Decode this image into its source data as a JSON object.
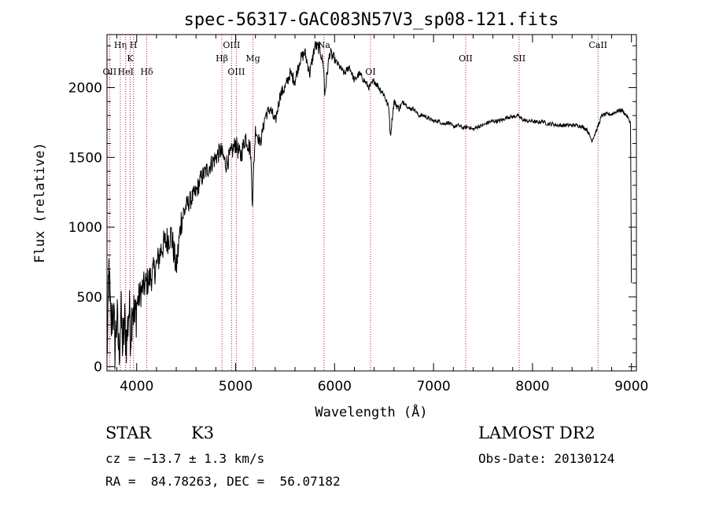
{
  "chart_data": {
    "type": "line",
    "title": "spec-56317-GAC083N57V3_sp08-121.fits",
    "xlabel": "Wavelength (Å)",
    "ylabel": "Flux (relative)",
    "xlim": [
      3700,
      9050
    ],
    "ylim": [
      -30,
      2380
    ],
    "x_ticks": [
      4000,
      5000,
      6000,
      7000,
      8000,
      9000
    ],
    "y_ticks": [
      0,
      500,
      1000,
      1500,
      2000
    ],
    "grid": false,
    "line_color": "#000000",
    "marker_color": "#b22222",
    "series": [
      {
        "x": [
          3700,
          3720,
          3740,
          3760,
          3780,
          3800,
          3820,
          3840,
          3860,
          3880,
          3900,
          3920,
          3940,
          3960,
          3980,
          4000,
          4050,
          4100,
          4150,
          4200,
          4250,
          4300,
          4350,
          4400,
          4450,
          4500,
          4550,
          4600,
          4650,
          4700,
          4750,
          4800,
          4850,
          4900,
          4950,
          5000,
          5050,
          5100,
          5150,
          5170,
          5200,
          5250,
          5300,
          5350,
          5400,
          5450,
          5500,
          5550,
          5600,
          5650,
          5700,
          5750,
          5800,
          5850,
          5890,
          5900,
          5950,
          6000,
          6050,
          6100,
          6150,
          6200,
          6250,
          6300,
          6350,
          6400,
          6450,
          6500,
          6550,
          6563,
          6600,
          6650,
          6700,
          6750,
          6800,
          6850,
          6900,
          6950,
          7000,
          7050,
          7100,
          7150,
          7200,
          7250,
          7300,
          7350,
          7400,
          7450,
          7500,
          7550,
          7600,
          7650,
          7700,
          7750,
          7800,
          7850,
          7900,
          7950,
          8000,
          8050,
          8100,
          8150,
          8200,
          8250,
          8300,
          8350,
          8400,
          8450,
          8500,
          8550,
          8600,
          8650,
          8700,
          8750,
          8800,
          8850,
          8900,
          8950,
          8990,
          9000
        ],
        "y": [
          50,
          700,
          250,
          450,
          150,
          350,
          100,
          380,
          150,
          300,
          180,
          420,
          250,
          500,
          300,
          450,
          550,
          600,
          650,
          720,
          850,
          900,
          950,
          700,
          1050,
          1150,
          1200,
          1250,
          1350,
          1400,
          1450,
          1500,
          1550,
          1450,
          1520,
          1600,
          1500,
          1650,
          1550,
          1200,
          1700,
          1600,
          1800,
          1850,
          1750,
          1950,
          2000,
          2100,
          2050,
          2200,
          2250,
          2100,
          2300,
          2280,
          2150,
          1950,
          2250,
          2200,
          2150,
          2100,
          2150,
          2050,
          2100,
          2050,
          2000,
          2050,
          2000,
          1950,
          1850,
          1650,
          1900,
          1850,
          1900,
          1850,
          1850,
          1800,
          1800,
          1780,
          1760,
          1760,
          1740,
          1750,
          1720,
          1730,
          1710,
          1720,
          1700,
          1720,
          1730,
          1750,
          1760,
          1760,
          1770,
          1790,
          1790,
          1800,
          1770,
          1760,
          1760,
          1750,
          1760,
          1740,
          1740,
          1730,
          1730,
          1730,
          1730,
          1730,
          1720,
          1700,
          1620,
          1700,
          1800,
          1810,
          1810,
          1830,
          1840,
          1800,
          1750,
          600
        ]
      }
    ],
    "spectral_lines": [
      {
        "label": "OII",
        "x": 3727,
        "level": 3
      },
      {
        "label": "Hη",
        "x": 3835,
        "level": 1
      },
      {
        "label": "HeI",
        "x": 3889,
        "level": 3
      },
      {
        "label": "K",
        "x": 3934,
        "level": 2
      },
      {
        "label": "H",
        "x": 3968,
        "level": 1
      },
      {
        "label": "Hδ",
        "x": 4102,
        "level": 3
      },
      {
        "label": "Hβ",
        "x": 4861,
        "level": 2
      },
      {
        "label": "OIII",
        "x": 4959,
        "level": 1
      },
      {
        "label": "OIII",
        "x": 5007,
        "level": 3
      },
      {
        "label": "Mg",
        "x": 5175,
        "level": 2
      },
      {
        "label": "Na",
        "x": 5893,
        "level": 1
      },
      {
        "label": "OI",
        "x": 6363,
        "level": 3
      },
      {
        "label": "OII",
        "x": 7325,
        "level": 2
      },
      {
        "label": "SII",
        "x": 7865,
        "level": 2
      },
      {
        "label": "CaII",
        "x": 8662,
        "level": 1
      }
    ]
  },
  "info": {
    "object_type": "STAR",
    "subclass": "K3",
    "survey": "LAMOST DR2",
    "cz": "cz = −13.7 ± 1.3 km/s",
    "obs_date": "Obs-Date: 20130124",
    "coords": "RA =  84.78263, DEC =  56.07182"
  }
}
